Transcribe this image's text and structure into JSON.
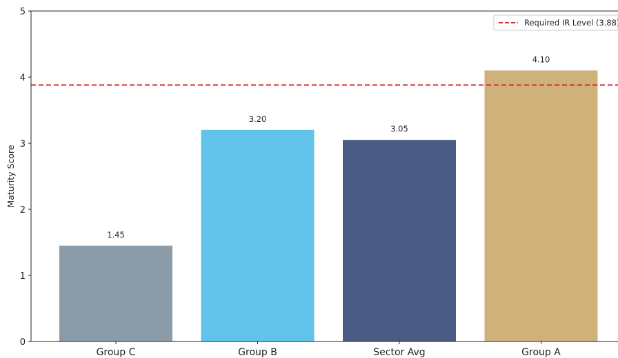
{
  "chart_data": {
    "type": "bar",
    "title": "",
    "xlabel": "",
    "ylabel": "Maturity Score",
    "ylim": [
      0,
      5
    ],
    "yticks": [
      0,
      1,
      2,
      3,
      4,
      5
    ],
    "categories": [
      "Group C",
      "Group B",
      "Sector Avg",
      "Group A"
    ],
    "values": [
      1.45,
      3.2,
      3.05,
      4.1
    ],
    "value_labels": [
      "1.45",
      "3.20",
      "3.05",
      "4.10"
    ],
    "bar_colors": [
      "#8c9ba8",
      "#62c4ea",
      "#4a5b83",
      "#cfb27a"
    ],
    "reference_line": {
      "label": "Required IR Level (3.88)",
      "value": 3.88,
      "color": "#d62728",
      "style": "dashed"
    },
    "legend": {
      "placement": "top-right"
    },
    "grid": false
  }
}
